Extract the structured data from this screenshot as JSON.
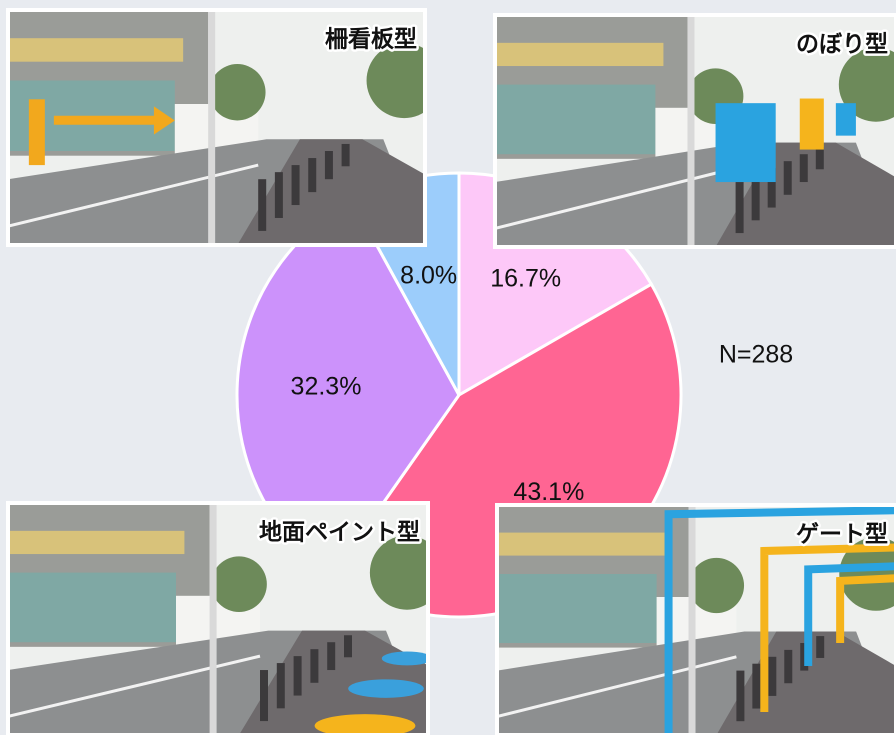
{
  "chart_data": {
    "type": "pie",
    "categories": [
      "のぼり型",
      "ゲート型",
      "地面ペイント型",
      "柵看板型"
    ],
    "values": [
      16.7,
      43.1,
      32.3,
      8.0
    ],
    "value_labels": [
      "16.7%",
      "43.1%",
      "32.3%",
      "8.0%"
    ],
    "colors": [
      "#fdc8f8",
      "#ff6593",
      "#cc92fb",
      "#9ccdfb"
    ],
    "note": "N=288"
  }
}
